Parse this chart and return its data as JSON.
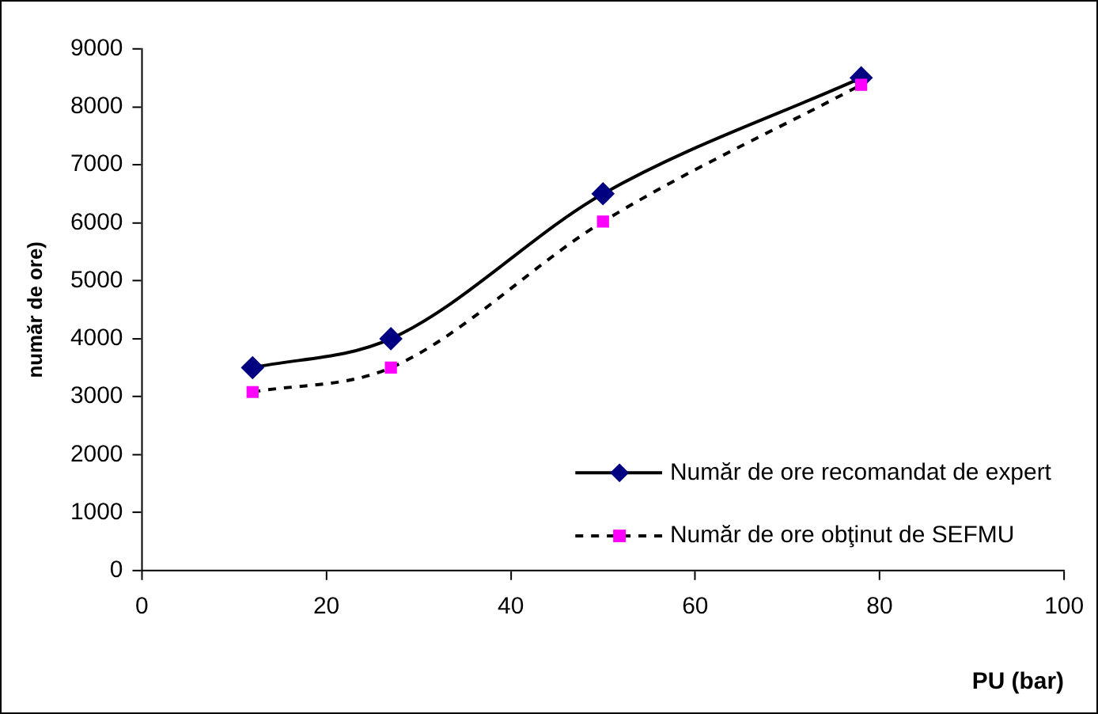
{
  "chart_data": {
    "type": "line",
    "xlabel": "PU (bar)",
    "ylabel": "număr de ore)",
    "x": [
      12,
      27,
      50,
      78
    ],
    "series": [
      {
        "name": "Număr de ore recomandat de expert",
        "color": "#000080",
        "values": [
          3500,
          4000,
          6500,
          8500
        ],
        "marker": "diamond",
        "line_style": "solid"
      },
      {
        "name": "Număr de ore obţinut de SEFMU",
        "color": "#ff00ff",
        "values": [
          3080,
          3500,
          6020,
          8380
        ],
        "marker": "square",
        "line_style": "dashed"
      }
    ],
    "xlim": [
      0,
      100
    ],
    "xticks": [
      0,
      20,
      40,
      60,
      80,
      100
    ],
    "ylim": [
      0,
      9000
    ],
    "yticks": [
      0,
      1000,
      2000,
      3000,
      4000,
      5000,
      6000,
      7000,
      8000,
      9000
    ],
    "grid": false,
    "legend": "bottom right"
  }
}
